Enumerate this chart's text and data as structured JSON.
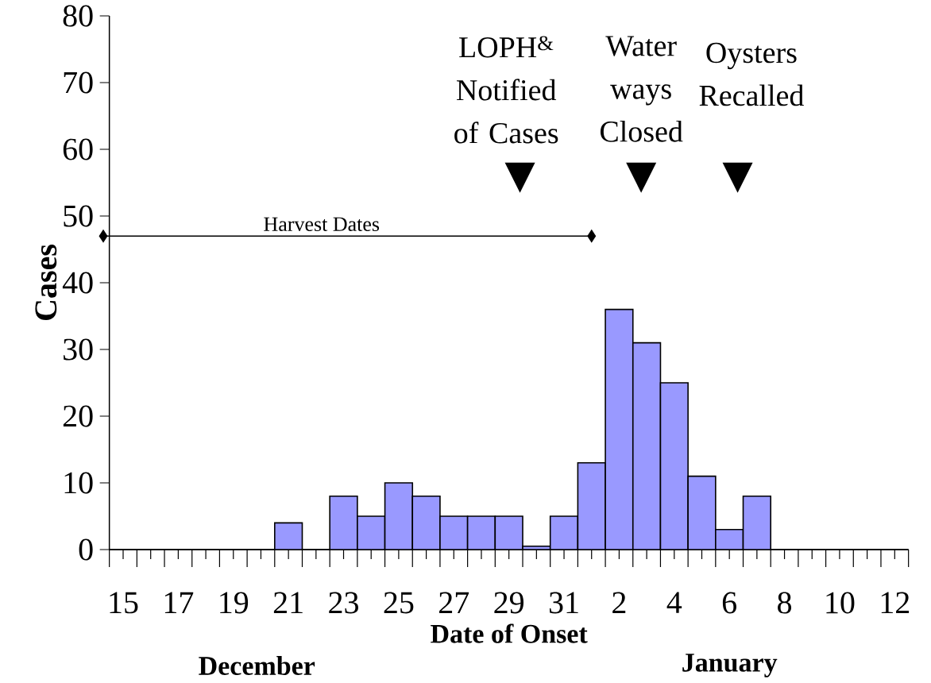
{
  "chart_data": {
    "type": "bar",
    "xlabel": "Date of Onset",
    "ylabel": "Cases",
    "categories": [
      "15",
      null,
      "17",
      null,
      "19",
      null,
      "21",
      null,
      "23",
      null,
      "25",
      null,
      "27",
      null,
      "29",
      null,
      "31",
      null,
      "2",
      null,
      "4",
      null,
      "6",
      null,
      "8",
      null,
      "10",
      null,
      "12"
    ],
    "values": [
      0,
      0,
      0,
      0,
      0,
      0,
      4,
      0,
      8,
      5,
      10,
      8,
      5,
      5,
      5,
      0.5,
      5,
      13,
      36,
      31,
      25,
      11,
      3,
      8,
      0,
      0,
      0,
      0,
      0
    ],
    "color": "#9999ff",
    "ylim": [
      0,
      80
    ],
    "yticks": [
      0,
      10,
      20,
      30,
      40,
      50,
      60,
      70,
      80
    ],
    "annotations": [
      "LOPH$^{&}$ Notified of Cases",
      "Water ways Closed",
      "Oysters Recalled",
      "Harvest Dates",
      "December",
      "January"
    ]
  }
}
